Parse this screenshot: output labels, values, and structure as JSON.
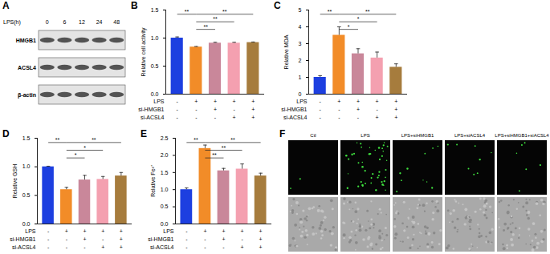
{
  "panels": {
    "A": {
      "panel_label": "A",
      "type": "western_blot",
      "time_label": "LPS(h)",
      "times": [
        "0",
        "6",
        "12",
        "24",
        "48"
      ],
      "proteins": [
        "HMGB1",
        "ACSL4",
        "β-actin"
      ]
    },
    "F": {
      "panel_label": "F",
      "type": "micrographs",
      "conditions": [
        "Ctl",
        "LPS",
        "LPS+siHMGB1",
        "LPS+siACSL4",
        "LPS+siHMGB1+siACSL4"
      ]
    }
  },
  "chart_data": [
    {
      "panel_label": "B",
      "type": "bar",
      "y_label": "Relative cell activity",
      "categories": [
        null,
        null,
        null,
        null,
        null
      ],
      "values": [
        1.0,
        0.84,
        0.91,
        0.91,
        0.92
      ],
      "errors": [
        0.02,
        0.01,
        0.015,
        0.015,
        0.01
      ],
      "colors": [
        "#1d3fe0",
        "#f28c28",
        "#c9879a",
        "#f4a0b0",
        "#a67c3d"
      ],
      "ylim": [
        0,
        1.5
      ],
      "yticks": [
        {
          "value": 0,
          "label": "0.0"
        },
        {
          "value": 0.5,
          "label": "0.5"
        },
        {
          "value": 1,
          "label": "1.0"
        },
        {
          "value": 1.5,
          "label": "1.5"
        }
      ],
      "tick_labels": "y",
      "treatments": [
        {
          "name": "LPS",
          "signs": [
            "-",
            "+",
            "+",
            "+",
            "+"
          ]
        },
        {
          "name": "si-HMGB1",
          "signs": [
            "-",
            "-",
            "+",
            "-",
            "+"
          ]
        },
        {
          "name": "si-ACSL4",
          "signs": [
            "-",
            "-",
            "-",
            "+",
            "+"
          ]
        }
      ],
      "comparisons": [
        {
          "groups": [
            0,
            1
          ],
          "label": "**"
        },
        {
          "groups": [
            1,
            4
          ],
          "label": "**"
        },
        {
          "groups": [
            1,
            3
          ],
          "label": "**"
        },
        {
          "groups": [
            1,
            2
          ],
          "label": "**"
        }
      ]
    },
    {
      "panel_label": "C",
      "type": "bar",
      "y_label": "Relative MDA",
      "categories": [
        null,
        null,
        null,
        null,
        null
      ],
      "values": [
        1.0,
        3.5,
        2.4,
        2.15,
        1.6
      ],
      "errors": [
        0.1,
        0.5,
        0.3,
        0.35,
        0.2
      ],
      "colors": [
        "#1d3fe0",
        "#f28c28",
        "#c9879a",
        "#f4a0b0",
        "#a67c3d"
      ],
      "ylim": [
        0,
        5
      ],
      "yticks": [
        0,
        1,
        2,
        3,
        4,
        5
      ],
      "tick_labels": "y",
      "treatments": [
        {
          "name": "LPS",
          "signs": [
            "-",
            "+",
            "+",
            "+",
            "+"
          ]
        },
        {
          "name": "si-HMGB1",
          "signs": [
            "-",
            "-",
            "+",
            "-",
            "+"
          ]
        },
        {
          "name": "si-ACSL4",
          "signs": [
            "-",
            "-",
            "-",
            "+",
            "+"
          ]
        }
      ],
      "comparisons": [
        {
          "groups": [
            0,
            1
          ],
          "label": "**"
        },
        {
          "groups": [
            1,
            4
          ],
          "label": "**"
        },
        {
          "groups": [
            1,
            3
          ],
          "label": "*"
        },
        {
          "groups": [
            1,
            2
          ],
          "label": "*"
        }
      ]
    },
    {
      "panel_label": "D",
      "type": "bar",
      "y_label": "Relative GSH",
      "categories": [
        null,
        null,
        null,
        null,
        null
      ],
      "values": [
        1.0,
        0.6,
        0.77,
        0.78,
        0.84
      ],
      "errors": [
        0.01,
        0.04,
        0.08,
        0.05,
        0.06
      ],
      "colors": [
        "#1d3fe0",
        "#f28c28",
        "#c9879a",
        "#f4a0b0",
        "#a67c3d"
      ],
      "ylim": [
        0,
        1.5
      ],
      "yticks": [
        {
          "value": 0,
          "label": "0.0"
        },
        {
          "value": 0.5,
          "label": "0.5"
        },
        {
          "value": 1,
          "label": "1.0"
        },
        {
          "value": 1.5,
          "label": "1.5"
        }
      ],
      "tick_labels": "y",
      "treatments": [
        {
          "name": "LPS",
          "signs": [
            "-",
            "+",
            "+",
            "+",
            "+"
          ]
        },
        {
          "name": "si-HMGB1",
          "signs": [
            "-",
            "-",
            "+",
            "-",
            "+"
          ]
        },
        {
          "name": "si-ACSL4",
          "signs": [
            "-",
            "-",
            "-",
            "+",
            "+"
          ]
        }
      ],
      "comparisons": [
        {
          "groups": [
            0,
            1
          ],
          "label": "**"
        },
        {
          "groups": [
            1,
            4
          ],
          "label": "**"
        },
        {
          "groups": [
            1,
            3
          ],
          "label": "*"
        },
        {
          "groups": [
            1,
            2
          ],
          "label": "*"
        }
      ]
    },
    {
      "panel_label": "E",
      "type": "bar",
      "y_label": "Relative Fe²⁺",
      "categories": [
        null,
        null,
        null,
        null,
        null
      ],
      "values": [
        1.0,
        2.2,
        1.55,
        1.6,
        1.4
      ],
      "errors": [
        0.05,
        0.1,
        0.07,
        0.15,
        0.08
      ],
      "colors": [
        "#1d3fe0",
        "#f28c28",
        "#c9879a",
        "#f4a0b0",
        "#a67c3d"
      ],
      "ylim": [
        0,
        2.5
      ],
      "yticks": [
        {
          "value": 0,
          "label": "0.0"
        },
        {
          "value": 0.5,
          "label": "0.5"
        },
        {
          "value": 1,
          "label": "1.0"
        },
        {
          "value": 1.5,
          "label": "1.5"
        },
        {
          "value": 2,
          "label": "2.0"
        },
        {
          "value": 2.5,
          "label": "2.5"
        }
      ],
      "tick_labels": "y",
      "treatments": [
        {
          "name": "LPS",
          "signs": [
            "-",
            "+",
            "+",
            "+",
            "+"
          ]
        },
        {
          "name": "si-HMGB1",
          "signs": [
            "-",
            "-",
            "+",
            "-",
            "+"
          ]
        },
        {
          "name": "si-ACSL4",
          "signs": [
            "-",
            "-",
            "-",
            "+",
            "+"
          ]
        }
      ],
      "comparisons": [
        {
          "groups": [
            0,
            1
          ],
          "label": "**"
        },
        {
          "groups": [
            1,
            4
          ],
          "label": "**"
        },
        {
          "groups": [
            1,
            3
          ],
          "label": "**"
        },
        {
          "groups": [
            1,
            2
          ],
          "label": "**"
        }
      ]
    }
  ]
}
